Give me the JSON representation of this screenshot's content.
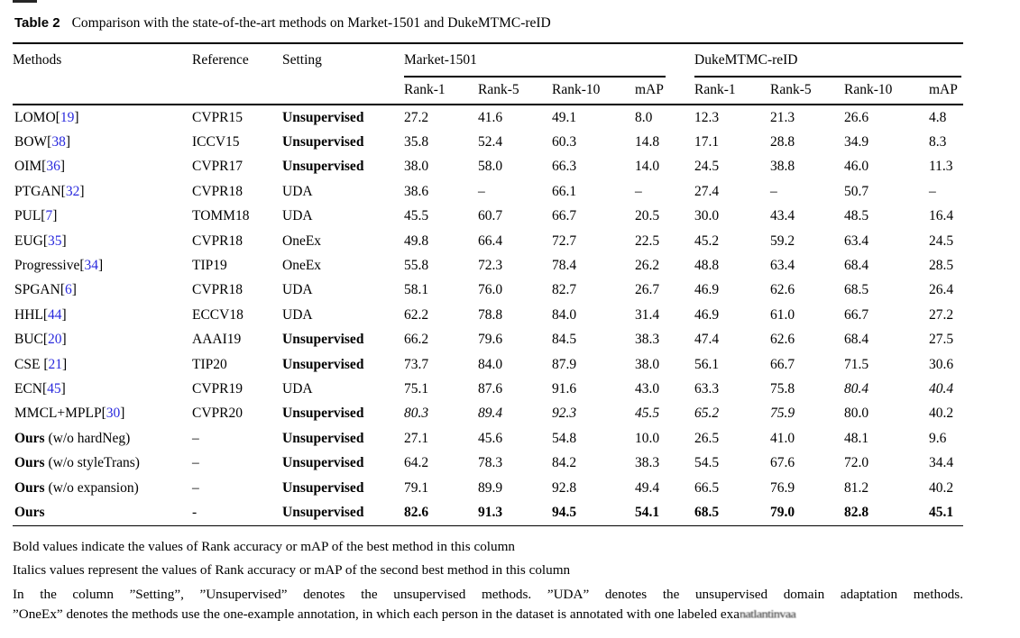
{
  "caption": {
    "label": "Table 2",
    "text": "Comparison with the state-of-the-art methods on Market-1501 and DukeMTMC-reID"
  },
  "colors": {
    "citation_blue": "#2929dd",
    "text": "#000000",
    "rule": "#000000"
  },
  "table": {
    "col_headers": {
      "methods": "Methods",
      "reference": "Reference",
      "setting": "Setting"
    },
    "groups": [
      {
        "label": "Market-1501",
        "sub": [
          "Rank-1",
          "Rank-5",
          "Rank-10",
          "mAP"
        ]
      },
      {
        "label": "DukeMTMC-reID",
        "sub": [
          "Rank-1",
          "Rank-5",
          "Rank-10",
          "mAP"
        ]
      }
    ],
    "rows": [
      {
        "name": "LOMO",
        "bold_name": false,
        "cite": "19",
        "suffix": "",
        "ref": "CVPR15",
        "setting": "Unsupervised",
        "m": [
          "27.2",
          "41.6",
          "49.1",
          "8.0"
        ],
        "ms": [
          "",
          "",
          "",
          ""
        ],
        "d": [
          "12.3",
          "21.3",
          "26.6",
          "4.8"
        ],
        "ds": [
          "",
          "",
          "",
          ""
        ]
      },
      {
        "name": "BOW",
        "bold_name": false,
        "cite": "38",
        "suffix": "",
        "ref": "ICCV15",
        "setting": "Unsupervised",
        "m": [
          "35.8",
          "52.4",
          "60.3",
          "14.8"
        ],
        "ms": [
          "",
          "",
          "",
          ""
        ],
        "d": [
          "17.1",
          "28.8",
          "34.9",
          "8.3"
        ],
        "ds": [
          "",
          "",
          "",
          ""
        ]
      },
      {
        "name": "OIM",
        "bold_name": false,
        "cite": "36",
        "suffix": "",
        "ref": "CVPR17",
        "setting": "Unsupervised",
        "m": [
          "38.0",
          "58.0",
          "66.3",
          "14.0"
        ],
        "ms": [
          "",
          "",
          "",
          ""
        ],
        "d": [
          "24.5",
          "38.8",
          "46.0",
          "11.3"
        ],
        "ds": [
          "",
          "",
          "",
          ""
        ]
      },
      {
        "name": "PTGAN",
        "bold_name": false,
        "cite": "32",
        "suffix": "",
        "ref": "CVPR18",
        "setting": "UDA",
        "m": [
          "38.6",
          "–",
          "66.1",
          "–"
        ],
        "ms": [
          "",
          "",
          "",
          ""
        ],
        "d": [
          "27.4",
          "–",
          "50.7",
          "–"
        ],
        "ds": [
          "",
          "",
          "",
          ""
        ]
      },
      {
        "name": "PUL",
        "bold_name": false,
        "cite": "7",
        "suffix": "",
        "ref": "TOMM18",
        "setting": "UDA",
        "m": [
          "45.5",
          "60.7",
          "66.7",
          "20.5"
        ],
        "ms": [
          "",
          "",
          "",
          ""
        ],
        "d": [
          "30.0",
          "43.4",
          "48.5",
          "16.4"
        ],
        "ds": [
          "",
          "",
          "",
          ""
        ]
      },
      {
        "name": "EUG",
        "bold_name": false,
        "cite": "35",
        "suffix": "",
        "ref": "CVPR18",
        "setting": "OneEx",
        "m": [
          "49.8",
          "66.4",
          "72.7",
          "22.5"
        ],
        "ms": [
          "",
          "",
          "",
          ""
        ],
        "d": [
          "45.2",
          "59.2",
          "63.4",
          "24.5"
        ],
        "ds": [
          "",
          "",
          "",
          ""
        ]
      },
      {
        "name": "Progressive",
        "bold_name": false,
        "cite": "34",
        "suffix": "",
        "ref": "TIP19",
        "setting": "OneEx",
        "m": [
          "55.8",
          "72.3",
          "78.4",
          "26.2"
        ],
        "ms": [
          "",
          "",
          "",
          ""
        ],
        "d": [
          "48.8",
          "63.4",
          "68.4",
          "28.5"
        ],
        "ds": [
          "",
          "",
          "",
          ""
        ]
      },
      {
        "name": "SPGAN",
        "bold_name": false,
        "cite": "6",
        "suffix": "",
        "ref": "CVPR18",
        "setting": "UDA",
        "m": [
          "58.1",
          "76.0",
          "82.7",
          "26.7"
        ],
        "ms": [
          "",
          "",
          "",
          ""
        ],
        "d": [
          "46.9",
          "62.6",
          "68.5",
          "26.4"
        ],
        "ds": [
          "",
          "",
          "",
          ""
        ]
      },
      {
        "name": "HHL",
        "bold_name": false,
        "cite": "44",
        "suffix": "",
        "ref": "ECCV18",
        "setting": "UDA",
        "m": [
          "62.2",
          "78.8",
          "84.0",
          "31.4"
        ],
        "ms": [
          "",
          "",
          "",
          ""
        ],
        "d": [
          "46.9",
          "61.0",
          "66.7",
          "27.2"
        ],
        "ds": [
          "",
          "",
          "",
          ""
        ]
      },
      {
        "name": "BUC",
        "bold_name": false,
        "cite": "20",
        "suffix": "",
        "ref": "AAAI19",
        "setting": "Unsupervised",
        "m": [
          "66.2",
          "79.6",
          "84.5",
          "38.3"
        ],
        "ms": [
          "",
          "",
          "",
          ""
        ],
        "d": [
          "47.4",
          "62.6",
          "68.4",
          "27.5"
        ],
        "ds": [
          "",
          "",
          "",
          ""
        ]
      },
      {
        "name": "CSE ",
        "bold_name": false,
        "cite": "21",
        "suffix": "",
        "ref": "TIP20",
        "setting": "Unsupervised",
        "m": [
          "73.7",
          "84.0",
          "87.9",
          "38.0"
        ],
        "ms": [
          "",
          "",
          "",
          ""
        ],
        "d": [
          "56.1",
          "66.7",
          "71.5",
          "30.6"
        ],
        "ds": [
          "",
          "",
          "",
          ""
        ]
      },
      {
        "name": "ECN",
        "bold_name": false,
        "cite": "45",
        "suffix": "",
        "ref": "CVPR19",
        "setting": "UDA",
        "m": [
          "75.1",
          "87.6",
          "91.6",
          "43.0"
        ],
        "ms": [
          "",
          "",
          "",
          ""
        ],
        "d": [
          "63.3",
          "75.8",
          "80.4",
          "40.4"
        ],
        "ds": [
          "",
          "",
          "i",
          "i"
        ]
      },
      {
        "name": "MMCL+MPLP",
        "bold_name": false,
        "cite": "30",
        "suffix": "",
        "ref": "CVPR20",
        "setting": "Unsupervised",
        "m": [
          "80.3",
          "89.4",
          "92.3",
          "45.5"
        ],
        "ms": [
          "i",
          "i",
          "i",
          "i"
        ],
        "d": [
          "65.2",
          "75.9",
          "80.0",
          "40.2"
        ],
        "ds": [
          "i",
          "i",
          "",
          ""
        ]
      },
      {
        "name": "Ours",
        "bold_name": true,
        "cite": "",
        "suffix": " (w/o hardNeg)",
        "ref": "–",
        "setting": "Unsupervised",
        "m": [
          "27.1",
          "45.6",
          "54.8",
          "10.0"
        ],
        "ms": [
          "",
          "",
          "",
          ""
        ],
        "d": [
          "26.5",
          "41.0",
          "48.1",
          "9.6"
        ],
        "ds": [
          "",
          "",
          "",
          ""
        ]
      },
      {
        "name": "Ours",
        "bold_name": true,
        "cite": "",
        "suffix": " (w/o styleTrans)",
        "ref": "–",
        "setting": "Unsupervised",
        "m": [
          "64.2",
          "78.3",
          "84.2",
          "38.3"
        ],
        "ms": [
          "",
          "",
          "",
          ""
        ],
        "d": [
          "54.5",
          "67.6",
          "72.0",
          "34.4"
        ],
        "ds": [
          "",
          "",
          "",
          ""
        ]
      },
      {
        "name": "Ours",
        "bold_name": true,
        "cite": "",
        "suffix": " (w/o expansion)",
        "ref": "–",
        "setting": "Unsupervised",
        "m": [
          "79.1",
          "89.9",
          "92.8",
          "49.4"
        ],
        "ms": [
          "",
          "",
          "",
          ""
        ],
        "d": [
          "66.5",
          "76.9",
          "81.2",
          "40.2"
        ],
        "ds": [
          "",
          "",
          "",
          ""
        ]
      },
      {
        "name": "Ours",
        "bold_name": true,
        "cite": "",
        "suffix": "",
        "ref": "-",
        "setting": "Unsupervised",
        "m": [
          "82.6",
          "91.3",
          "94.5",
          "54.1"
        ],
        "ms": [
          "b",
          "b",
          "b",
          "b"
        ],
        "d": [
          "68.5",
          "79.0",
          "82.8",
          "45.1"
        ],
        "ds": [
          "b",
          "b",
          "b",
          "b"
        ]
      }
    ]
  },
  "footnotes": {
    "fn1": "Bold values indicate the values of Rank accuracy or mAP of the best method in this column",
    "fn2": "Italics values represent the values of Rank accuracy or mAP of the second best method in this column",
    "fn3_line1": "In the column ”Setting”, ”Unsupervised” denotes the unsupervised methods. ”UDA” denotes the unsupervised domain adaptation methods.",
    "fn3_line2": "”OneEx” denotes the methods use the one-example annotation, in which each person in the dataset is annotated with one labeled exa",
    "watermark": "natlantinvaa"
  }
}
